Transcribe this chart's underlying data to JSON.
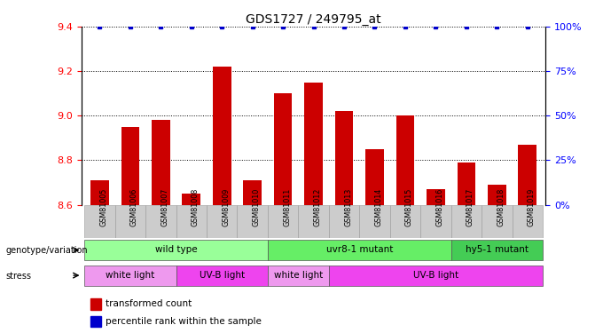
{
  "title": "GDS1727 / 249795_at",
  "samples": [
    "GSM81005",
    "GSM81006",
    "GSM81007",
    "GSM81008",
    "GSM81009",
    "GSM81010",
    "GSM81011",
    "GSM81012",
    "GSM81013",
    "GSM81014",
    "GSM81015",
    "GSM81016",
    "GSM81017",
    "GSM81018",
    "GSM81019"
  ],
  "bar_values": [
    8.71,
    8.95,
    8.98,
    8.65,
    9.22,
    8.71,
    9.1,
    9.15,
    9.02,
    8.85,
    9.0,
    8.67,
    8.79,
    8.69,
    8.87
  ],
  "percentile_values": [
    100,
    100,
    100,
    100,
    100,
    100,
    100,
    100,
    100,
    100,
    100,
    100,
    100,
    100,
    100
  ],
  "bar_color": "#CC0000",
  "dot_color": "#0000CC",
  "ylim_left": [
    8.6,
    9.4
  ],
  "ylim_right": [
    0,
    100
  ],
  "yticks_left": [
    8.6,
    8.8,
    9.0,
    9.2,
    9.4
  ],
  "yticks_right": [
    0,
    25,
    50,
    75,
    100
  ],
  "grid_values": [
    8.8,
    9.0,
    9.2
  ],
  "background_color": "#ffffff",
  "sample_bg_color": "#cccccc",
  "genotype_groups": [
    {
      "label": "wild type",
      "start": 0,
      "end": 5,
      "color": "#99FF99"
    },
    {
      "label": "uvr8-1 mutant",
      "start": 6,
      "end": 11,
      "color": "#66EE66"
    },
    {
      "label": "hy5-1 mutant",
      "start": 12,
      "end": 14,
      "color": "#44CC55"
    }
  ],
  "stress_groups": [
    {
      "label": "white light",
      "start": 0,
      "end": 2,
      "color": "#EE99EE"
    },
    {
      "label": "UV-B light",
      "start": 3,
      "end": 5,
      "color": "#EE44EE"
    },
    {
      "label": "white light",
      "start": 6,
      "end": 7,
      "color": "#EE99EE"
    },
    {
      "label": "UV-B light",
      "start": 8,
      "end": 14,
      "color": "#EE44EE"
    }
  ],
  "legend_items": [
    {
      "color": "#CC0000",
      "label": "transformed count"
    },
    {
      "color": "#0000CC",
      "label": "percentile rank within the sample"
    }
  ],
  "left_labels": [
    {
      "text": "genotype/variation",
      "row": "geno"
    },
    {
      "text": "stress",
      "row": "stress"
    }
  ]
}
